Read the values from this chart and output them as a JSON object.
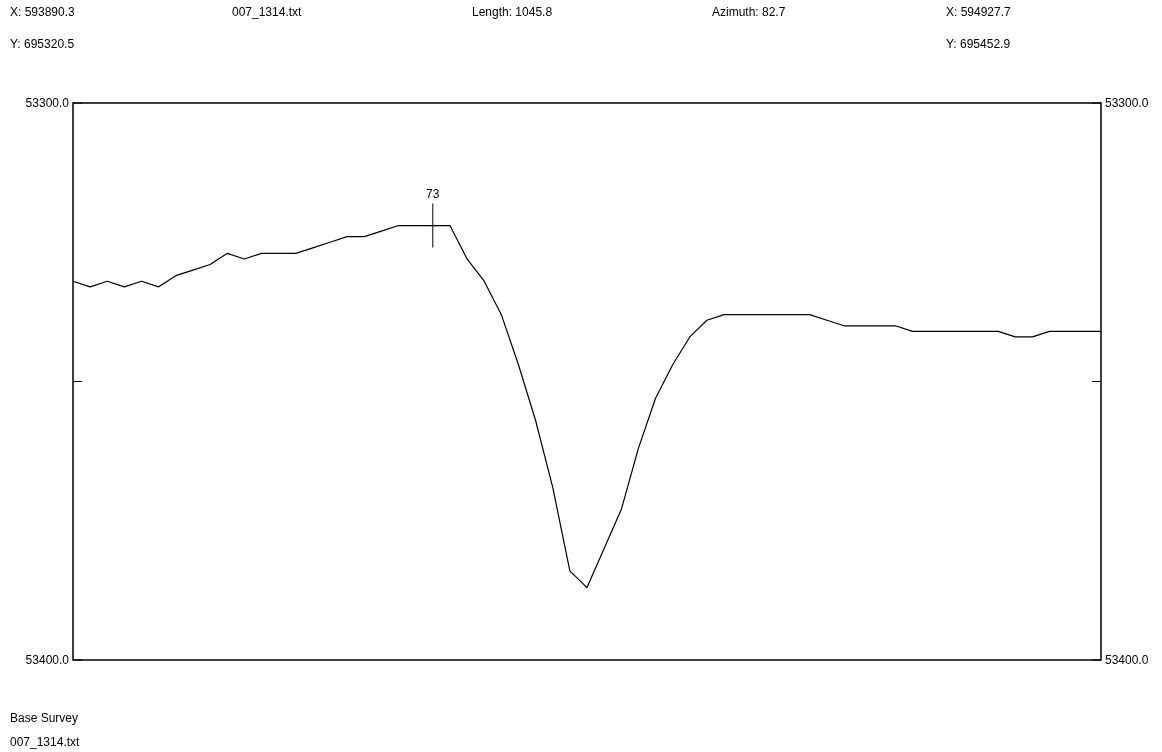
{
  "chart_data": {
    "type": "line",
    "categories": [
      null,
      null,
      null,
      null,
      null,
      null,
      null,
      null,
      null,
      null,
      null,
      null,
      null,
      null,
      null,
      null,
      null,
      null,
      null,
      null,
      null,
      null,
      null,
      null,
      null,
      null,
      null,
      null,
      null,
      null,
      null,
      null,
      null,
      null,
      null,
      null,
      null,
      null,
      null,
      null,
      null,
      null,
      null,
      null,
      null,
      null,
      null,
      null,
      null,
      null,
      null,
      null,
      null,
      null,
      null,
      null,
      null,
      null,
      null,
      null,
      null
    ],
    "series": [
      {
        "color": "#000000",
        "values": [
          53332,
          53333,
          53332,
          53333,
          53332,
          53333,
          53331,
          53330,
          53329,
          53327,
          53328,
          53327,
          53327,
          53327,
          53326,
          53325,
          53324,
          53324,
          53323,
          53322,
          53322,
          53322,
          53322,
          53328,
          53332,
          53338,
          53347,
          53357,
          53369,
          53384,
          53387,
          53380,
          53373,
          53362,
          53353,
          53347,
          53342,
          53339,
          53338,
          53338,
          53338,
          53338,
          53338,
          53338,
          53339,
          53340,
          53340,
          53340,
          53340,
          53341,
          53341,
          53341,
          53341,
          53341,
          53341,
          53342,
          53342,
          53341,
          53341,
          53341,
          53341
        ]
      }
    ],
    "ylim": [
      53400,
      53300
    ],
    "yticks": [
      {
        "value": 53300,
        "label": "53300.0"
      },
      {
        "value": 53350,
        "label": null
      },
      {
        "value": 53400,
        "label": "53400.0"
      }
    ],
    "y2lim": [
      53400,
      53300
    ],
    "y2ticks": [
      {
        "value": 53300,
        "label": "53300.0"
      },
      {
        "value": 53350,
        "label": null
      },
      {
        "value": 53400,
        "label": "53400.0"
      }
    ],
    "tick_labels": "y",
    "marker": "none",
    "line_style": "solid",
    "annotations": [
      "X: 593890.3",
      "007_1314.txt",
      "Length: 1045.8",
      "Azimuth: 82.7",
      "X: 594927.7",
      "Y: 695320.5",
      "Y: 695452.9",
      "Base Survey",
      "007_1314.txt",
      "73"
    ]
  }
}
